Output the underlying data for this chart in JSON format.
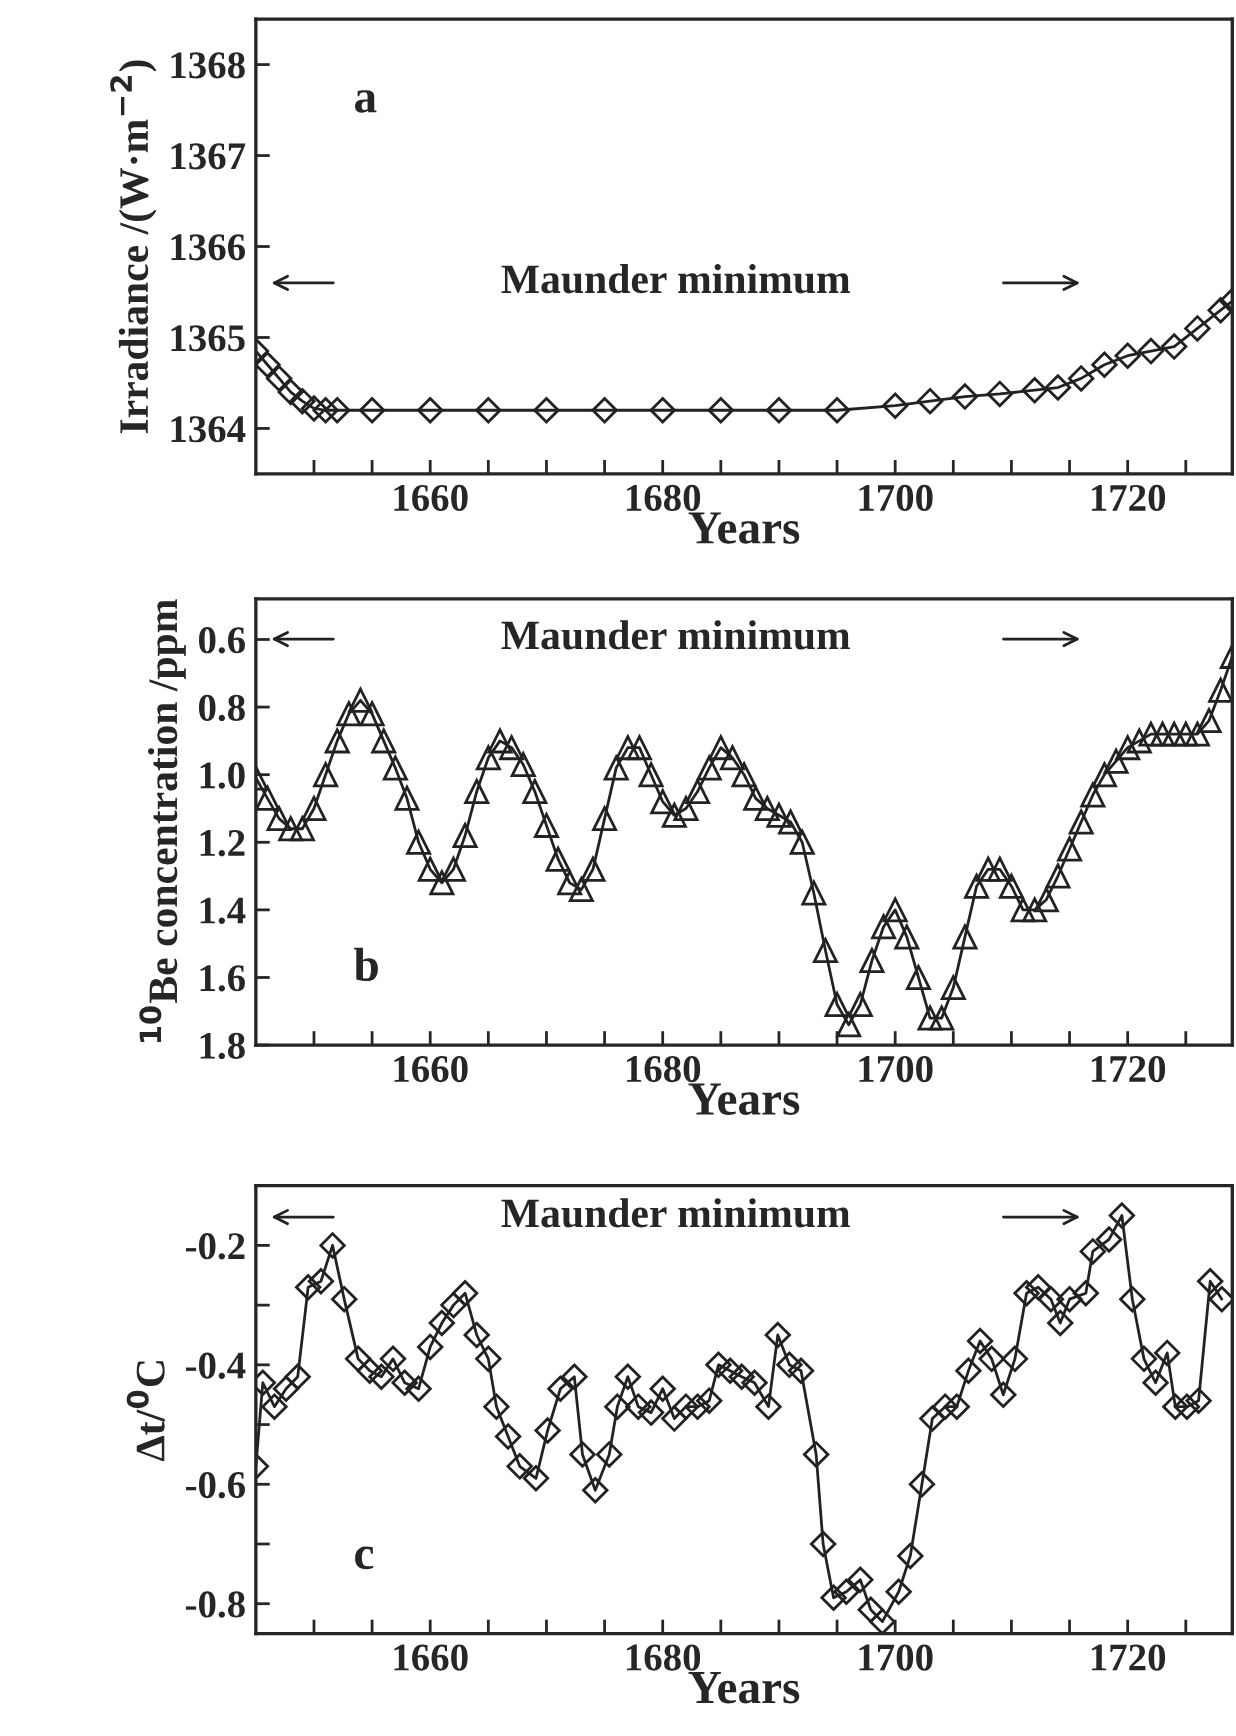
{
  "chart_data": [
    {
      "type": "line",
      "ylabel": "Irradiance /(W·m$^{−2}$)",
      "xlabel": "Years",
      "annotations": [
        "a",
        "Maunder minimum"
      ],
      "marker": "diamond",
      "grid": false,
      "legend": false,
      "xlim": [
        1645,
        1729
      ],
      "xticks": [
        {
          "value": 1650,
          "label": null
        },
        {
          "value": 1655,
          "label": null
        },
        1660,
        {
          "value": 1665,
          "label": null
        },
        {
          "value": 1670,
          "label": null
        },
        {
          "value": 1675,
          "label": null
        },
        1680,
        {
          "value": 1685,
          "label": null
        },
        {
          "value": 1690,
          "label": null
        },
        {
          "value": 1695,
          "label": null
        },
        1700,
        {
          "value": 1705,
          "label": null
        },
        {
          "value": 1710,
          "label": null
        },
        {
          "value": 1715,
          "label": null
        },
        1720,
        {
          "value": 1725,
          "label": null
        }
      ],
      "ylim": [
        1363.5,
        1368.5
      ],
      "yticks": [
        1364,
        1365,
        1366,
        1367,
        1368
      ],
      "series": [
        {
          "color": "#222222",
          "x": [
            1645,
            1646,
            1647,
            1648,
            1649,
            1650,
            1651,
            1652,
            1655,
            1660,
            1665,
            1670,
            1675,
            1680,
            1685,
            1690,
            1695,
            1700,
            1703,
            1706,
            1709,
            1712,
            1714,
            1716,
            1718,
            1720,
            1722,
            1724,
            1726,
            1728,
            1729
          ],
          "values": [
            1364.85,
            1364.7,
            1364.55,
            1364.4,
            1364.3,
            1364.22,
            1364.2,
            1364.2,
            1364.2,
            1364.2,
            1364.2,
            1364.2,
            1364.2,
            1364.2,
            1364.2,
            1364.2,
            1364.2,
            1364.25,
            1364.3,
            1364.35,
            1364.38,
            1364.42,
            1364.45,
            1364.55,
            1364.7,
            1364.8,
            1364.85,
            1364.9,
            1365.1,
            1365.3,
            1365.4
          ]
        }
      ]
    },
    {
      "type": "line",
      "ylabel": "$^{10}$Be concentration /ppm",
      "xlabel": "Years",
      "annotations": [
        "b",
        "Maunder minimum"
      ],
      "marker": "triangle",
      "grid": false,
      "legend": false,
      "xlim": [
        1645,
        1729
      ],
      "xticks": [
        {
          "value": 1650,
          "label": null
        },
        {
          "value": 1655,
          "label": null
        },
        1660,
        {
          "value": 1665,
          "label": null
        },
        {
          "value": 1670,
          "label": null
        },
        {
          "value": 1675,
          "label": null
        },
        1680,
        {
          "value": 1685,
          "label": null
        },
        {
          "value": 1690,
          "label": null
        },
        {
          "value": 1695,
          "label": null
        },
        1700,
        {
          "value": 1705,
          "label": null
        },
        {
          "value": 1710,
          "label": null
        },
        {
          "value": 1715,
          "label": null
        },
        1720,
        {
          "value": 1725,
          "label": null
        }
      ],
      "ylim": [
        1.8,
        0.48
      ],
      "yticks": [
        0.6,
        0.8,
        {
          "value": 1.0,
          "label": "1.0"
        },
        1.2,
        1.4,
        1.6,
        1.8
      ],
      "series": [
        {
          "color": "#222222",
          "x": [
            1645,
            1646,
            1647,
            1648,
            1649,
            1650,
            1651,
            1652,
            1653,
            1654,
            1655,
            1656,
            1657,
            1658,
            1659,
            1660,
            1661,
            1662,
            1663,
            1664,
            1665,
            1666,
            1667,
            1668,
            1669,
            1670,
            1671,
            1672,
            1673,
            1674,
            1675,
            1676,
            1677,
            1678,
            1679,
            1680,
            1681,
            1682,
            1683,
            1684,
            1685,
            1686,
            1687,
            1688,
            1689,
            1690,
            1691,
            1692,
            1693,
            1694,
            1695,
            1696,
            1697,
            1698,
            1699,
            1700,
            1701,
            1702,
            1703,
            1704,
            1705,
            1706,
            1707,
            1708,
            1709,
            1710,
            1711,
            1712,
            1713,
            1714,
            1715,
            1716,
            1717,
            1718,
            1719,
            1720,
            1721,
            1722,
            1723,
            1724,
            1725,
            1726,
            1727,
            1728,
            1729
          ],
          "values": [
            1.01,
            1.07,
            1.13,
            1.16,
            1.16,
            1.1,
            1.0,
            0.9,
            0.82,
            0.78,
            0.82,
            0.9,
            0.98,
            1.07,
            1.2,
            1.28,
            1.32,
            1.28,
            1.18,
            1.05,
            0.95,
            0.9,
            0.92,
            0.97,
            1.05,
            1.15,
            1.25,
            1.32,
            1.34,
            1.28,
            1.13,
            0.98,
            0.92,
            0.92,
            1.0,
            1.08,
            1.12,
            1.1,
            1.05,
            0.98,
            0.92,
            0.95,
            1.0,
            1.07,
            1.1,
            1.12,
            1.14,
            1.2,
            1.35,
            1.52,
            1.68,
            1.74,
            1.68,
            1.55,
            1.45,
            1.4,
            1.48,
            1.6,
            1.72,
            1.72,
            1.63,
            1.48,
            1.33,
            1.28,
            1.28,
            1.33,
            1.4,
            1.4,
            1.37,
            1.3,
            1.22,
            1.14,
            1.06,
            1.0,
            0.96,
            0.92,
            0.9,
            0.88,
            0.88,
            0.88,
            0.88,
            0.88,
            0.84,
            0.75,
            0.65
          ]
        }
      ]
    },
    {
      "type": "line",
      "ylabel": "Δt/$^{0}$C",
      "xlabel": "Years",
      "annotations": [
        "c",
        "Maunder minimum"
      ],
      "marker": "diamond",
      "grid": false,
      "legend": false,
      "xlim": [
        1645,
        1729
      ],
      "xticks": [
        {
          "value": 1650,
          "label": null
        },
        {
          "value": 1655,
          "label": null
        },
        1660,
        {
          "value": 1665,
          "label": null
        },
        {
          "value": 1670,
          "label": null
        },
        {
          "value": 1675,
          "label": null
        },
        1680,
        {
          "value": 1685,
          "label": null
        },
        {
          "value": 1690,
          "label": null
        },
        {
          "value": 1695,
          "label": null
        },
        1700,
        {
          "value": 1705,
          "label": null
        },
        {
          "value": 1710,
          "label": null
        },
        {
          "value": 1715,
          "label": null
        },
        1720,
        {
          "value": 1725,
          "label": null
        }
      ],
      "ylim": [
        -0.85,
        -0.1
      ],
      "yticks": [
        {
          "value": -0.8,
          "label": "-0.8"
        },
        {
          "value": -0.7,
          "label": null
        },
        {
          "value": -0.6,
          "label": "-0.6"
        },
        {
          "value": -0.5,
          "label": null
        },
        {
          "value": -0.4,
          "label": "-0.4"
        },
        {
          "value": -0.3,
          "label": null
        },
        {
          "value": -0.2,
          "label": "-0.2"
        }
      ],
      "series": [
        {
          "color": "#222222",
          "x": [
            1645.0,
            1645.6,
            1646.6,
            1647.6,
            1648.6,
            1649.5,
            1650.6,
            1651.6,
            1652.6,
            1653.8,
            1654.8,
            1655.8,
            1656.8,
            1657.8,
            1659.0,
            1660.0,
            1661.0,
            1662.0,
            1663.0,
            1664.0,
            1665.0,
            1665.7,
            1666.7,
            1667.7,
            1669.1,
            1670.1,
            1671.2,
            1672.4,
            1673.1,
            1674.2,
            1675.4,
            1676.1,
            1677.0,
            1677.9,
            1679.0,
            1680.0,
            1681.0,
            1682.0,
            1683.0,
            1684.0,
            1684.8,
            1685.8,
            1686.8,
            1687.9,
            1689.1,
            1689.9,
            1690.9,
            1691.9,
            1693.2,
            1693.8,
            1694.7,
            1695.8,
            1697.0,
            1697.9,
            1698.9,
            1700.3,
            1701.3,
            1702.3,
            1703.2,
            1704.3,
            1705.3,
            1706.3,
            1707.3,
            1708.3,
            1709.3,
            1710.3,
            1711.3,
            1712.3,
            1713.4,
            1714.2,
            1715.0,
            1716.4,
            1717.0,
            1718.4,
            1719.5,
            1720.4,
            1721.4,
            1722.4,
            1723.4,
            1724.1,
            1725.1,
            1726.1,
            1727.1,
            1728.1
          ],
          "values": [
            -0.57,
            -0.43,
            -0.47,
            -0.44,
            -0.42,
            -0.27,
            -0.26,
            -0.2,
            -0.29,
            -0.39,
            -0.41,
            -0.42,
            -0.39,
            -0.43,
            -0.44,
            -0.37,
            -0.33,
            -0.3,
            -0.28,
            -0.35,
            -0.39,
            -0.47,
            -0.52,
            -0.57,
            -0.59,
            -0.51,
            -0.44,
            -0.42,
            -0.55,
            -0.61,
            -0.55,
            -0.47,
            -0.42,
            -0.47,
            -0.48,
            -0.44,
            -0.49,
            -0.47,
            -0.47,
            -0.46,
            -0.4,
            -0.41,
            -0.42,
            -0.43,
            -0.47,
            -0.35,
            -0.4,
            -0.41,
            -0.55,
            -0.7,
            -0.79,
            -0.78,
            -0.76,
            -0.81,
            -0.83,
            -0.78,
            -0.72,
            -0.6,
            -0.49,
            -0.47,
            -0.47,
            -0.41,
            -0.36,
            -0.39,
            -0.45,
            -0.39,
            -0.28,
            -0.27,
            -0.29,
            -0.33,
            -0.29,
            -0.28,
            -0.21,
            -0.19,
            -0.15,
            -0.29,
            -0.39,
            -0.43,
            -0.38,
            -0.47,
            -0.47,
            -0.46,
            -0.26,
            -0.29
          ]
        }
      ]
    }
  ]
}
